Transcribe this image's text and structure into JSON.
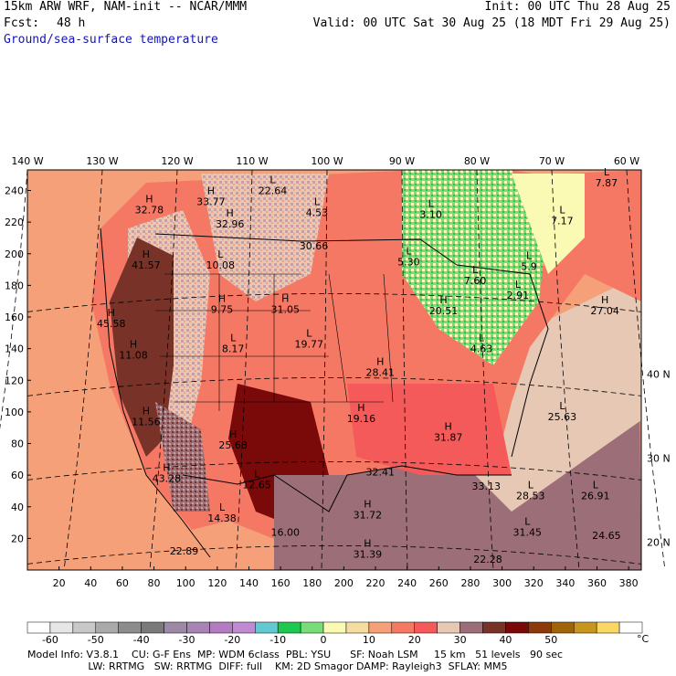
{
  "header": {
    "model": "15km ARW WRF, NAM-init -- NCAR/MMM",
    "init": "Init: 00 UTC Thu 28 Aug 25",
    "fcst_label": "Fcst:",
    "fcst_value": "48 h",
    "valid": "Valid: 00 UTC Sat 30 Aug 25 (18 MDT Fri 29 Aug 25)",
    "field": "Ground/sea-surface temperature"
  },
  "map": {
    "lon_labels": [
      {
        "text": "140 W",
        "lon": 140
      },
      {
        "text": "130 W",
        "lon": 130
      },
      {
        "text": "120 W",
        "lon": 120
      },
      {
        "text": "110 W",
        "lon": 110
      },
      {
        "text": "100 W",
        "lon": 100
      },
      {
        "text": "90 W",
        "lon": 90
      },
      {
        "text": "80 W",
        "lon": 80
      },
      {
        "text": "70 W",
        "lon": 70
      },
      {
        "text": "60 W",
        "lon": 60
      }
    ],
    "lat_labels": [
      {
        "text": "40 N",
        "lat": 40
      },
      {
        "text": "30 N",
        "lat": 30
      },
      {
        "text": "20 N",
        "lat": 20
      }
    ],
    "y_ticks": [
      20,
      40,
      60,
      80,
      100,
      120,
      140,
      160,
      180,
      200,
      220,
      240
    ],
    "x_ticks": [
      20,
      40,
      60,
      80,
      100,
      120,
      140,
      160,
      180,
      200,
      220,
      240,
      260,
      280,
      300,
      320,
      340,
      360,
      380
    ],
    "annotations": [
      {
        "type": "H",
        "value": "32.78",
        "gx": 77,
        "gy": 228
      },
      {
        "type": "H",
        "value": "33.77",
        "gx": 116,
        "gy": 233
      },
      {
        "type": "L",
        "value": "22.64",
        "gx": 155,
        "gy": 240
      },
      {
        "type": "H",
        "value": "32.96",
        "gx": 128,
        "gy": 219
      },
      {
        "type": "L",
        "value": "4.53",
        "gx": 183,
        "gy": 226
      },
      {
        "type": "",
        "value": "30.66",
        "gx": 181,
        "gy": 205
      },
      {
        "type": "H",
        "value": "41.57",
        "gx": 75,
        "gy": 193
      },
      {
        "type": "L",
        "value": "10.08",
        "gx": 122,
        "gy": 193
      },
      {
        "type": "L",
        "value": "3.10",
        "gx": 255,
        "gy": 225
      },
      {
        "type": "L",
        "value": "5.30",
        "gx": 241,
        "gy": 195
      },
      {
        "type": "L",
        "value": "7.87",
        "gx": 366,
        "gy": 245
      },
      {
        "type": "L",
        "value": "7.17",
        "gx": 338,
        "gy": 221
      },
      {
        "type": "L",
        "value": "5.9",
        "gx": 317,
        "gy": 192
      },
      {
        "type": "L",
        "value": "7.60",
        "gx": 283,
        "gy": 183
      },
      {
        "type": "L",
        "value": "2.91",
        "gx": 310,
        "gy": 174
      },
      {
        "type": "H",
        "value": "20.51",
        "gx": 263,
        "gy": 164
      },
      {
        "type": "H",
        "value": "9.75",
        "gx": 123,
        "gy": 165
      },
      {
        "type": "H",
        "value": "31.05",
        "gx": 163,
        "gy": 165
      },
      {
        "type": "H",
        "value": "27.04",
        "gx": 365,
        "gy": 164
      },
      {
        "type": "H",
        "value": "45.58",
        "gx": 53,
        "gy": 156
      },
      {
        "type": "L",
        "value": "19.77",
        "gx": 178,
        "gy": 143
      },
      {
        "type": "L",
        "value": "8.17",
        "gx": 130,
        "gy": 140
      },
      {
        "type": "H",
        "value": "11.08",
        "gx": 67,
        "gy": 136
      },
      {
        "type": "L",
        "value": "4.63",
        "gx": 287,
        "gy": 140
      },
      {
        "type": "H",
        "value": "28.41",
        "gx": 223,
        "gy": 125
      },
      {
        "type": "H",
        "value": "19.16",
        "gx": 211,
        "gy": 96
      },
      {
        "type": "L",
        "value": "25.63",
        "gx": 338,
        "gy": 97
      },
      {
        "type": "H",
        "value": "31.87",
        "gx": 266,
        "gy": 84
      },
      {
        "type": "H",
        "value": "11.56",
        "gx": 75,
        "gy": 94
      },
      {
        "type": "H",
        "value": "25.68",
        "gx": 130,
        "gy": 79
      },
      {
        "type": "H",
        "value": "43.28",
        "gx": 88,
        "gy": 58
      },
      {
        "type": "L",
        "value": "12.65",
        "gx": 145,
        "gy": 54
      },
      {
        "type": "",
        "value": "32.41",
        "gx": 223,
        "gy": 62
      },
      {
        "type": "",
        "value": "33.13",
        "gx": 290,
        "gy": 53
      },
      {
        "type": "L",
        "value": "28.53",
        "gx": 318,
        "gy": 47
      },
      {
        "type": "L",
        "value": "26.91",
        "gx": 359,
        "gy": 47
      },
      {
        "type": "H",
        "value": "31.72",
        "gx": 215,
        "gy": 35
      },
      {
        "type": "L",
        "value": "14.38",
        "gx": 123,
        "gy": 33
      },
      {
        "type": "",
        "value": "16.00",
        "gx": 163,
        "gy": 24
      },
      {
        "type": "L",
        "value": "31.45",
        "gx": 316,
        "gy": 24
      },
      {
        "type": "",
        "value": "24.65",
        "gx": 366,
        "gy": 22
      },
      {
        "type": "",
        "value": "22.89",
        "gx": 99,
        "gy": 12
      },
      {
        "type": "H",
        "value": "31.39",
        "gx": 215,
        "gy": 10
      },
      {
        "type": "",
        "value": "22.28",
        "gx": 291,
        "gy": 7
      }
    ]
  },
  "colorbar": {
    "unit": "°C",
    "labels": [
      "-60",
      "-50",
      "-40",
      "-30",
      "-20",
      "-10",
      "0",
      "10",
      "20",
      "30",
      "40",
      "50"
    ],
    "colors": [
      "#ffffff",
      "#e6e6e6",
      "#c8c8c8",
      "#aaaaaa",
      "#8c8c8c",
      "#7a7a7a",
      "#9a8aa6",
      "#a884b4",
      "#b47cc0",
      "#c08ad0",
      "#64c8d2",
      "#1ec850",
      "#78dc78",
      "#fafab4",
      "#f5dca0",
      "#f5a078",
      "#f57864",
      "#f55a5a",
      "#e6c8b4",
      "#9b6e78",
      "#783228",
      "#7a0a0a",
      "#8b3a0a",
      "#a0640a",
      "#c8961e",
      "#fad764",
      "#ffffff"
    ]
  },
  "info": {
    "line1": "Model Info: V3.8.1    CU: G-F Ens  MP: WDM 6class  PBL: YSU      SF: Noah LSM     15 km   51 levels   90 sec",
    "line2": "                   LW: RRTMG   SW: RRTMG  DIFF: full    KM: 2D Smagor DAMP: Rayleigh3  SFLAY: MM5"
  }
}
